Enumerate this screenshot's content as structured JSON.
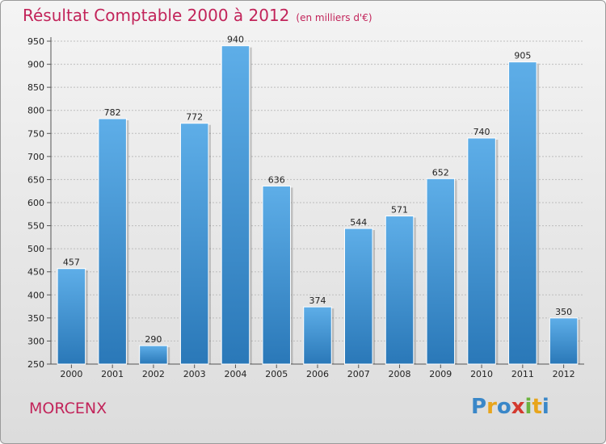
{
  "chart_data": {
    "type": "bar",
    "title": "Résultat Comptable 2000 à 2012",
    "subtitle": "(en milliers d'€)",
    "categories": [
      "2000",
      "2001",
      "2002",
      "2003",
      "2004",
      "2005",
      "2006",
      "2007",
      "2008",
      "2009",
      "2010",
      "2011",
      "2012"
    ],
    "values": [
      457,
      782,
      290,
      772,
      940,
      636,
      374,
      544,
      571,
      652,
      740,
      905,
      350
    ],
    "ylim": [
      250,
      950
    ],
    "yticks": [
      250,
      300,
      350,
      400,
      450,
      500,
      550,
      600,
      650,
      700,
      750,
      800,
      850,
      900,
      950
    ],
    "xlabel": "",
    "ylabel": "",
    "grid": true,
    "colors": {
      "bar_top": "#5eaee8",
      "bar_bottom": "#2a78b8",
      "title": "#c2245a"
    }
  },
  "place_name": "MORCENX",
  "brand": {
    "letters": [
      {
        "char": "P",
        "color": "#3a87c8"
      },
      {
        "char": "r",
        "color": "#e8a51c"
      },
      {
        "char": "o",
        "color": "#3a87c8"
      },
      {
        "char": "x",
        "color": "#d33a2f"
      },
      {
        "char": "i",
        "color": "#6cb33f"
      },
      {
        "char": "t",
        "color": "#e8a51c"
      },
      {
        "char": "i",
        "color": "#3a87c8"
      }
    ]
  }
}
